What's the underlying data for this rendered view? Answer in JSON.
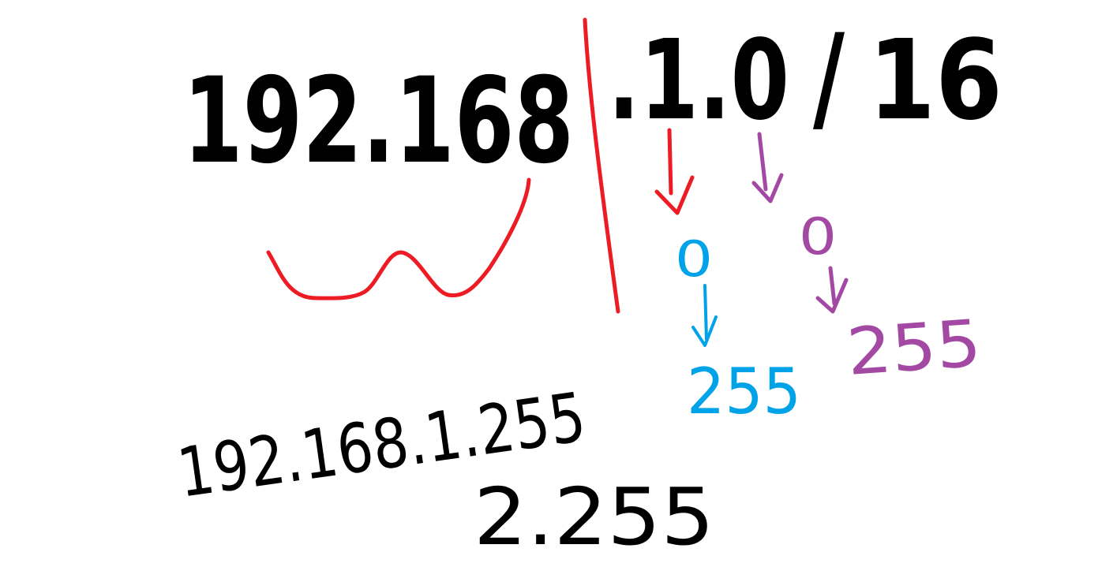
{
  "heading": {
    "network_part": "192.168",
    "host_part": ".1.0",
    "slash": "/",
    "prefix": "16"
  },
  "annotations": {
    "blue_low": "0",
    "blue_high": "255",
    "purple_low": "0",
    "purple_high": "255"
  },
  "bottom": {
    "line1": "192.168.1.255",
    "line2": "2.255"
  },
  "colors": {
    "ink": "#000000",
    "red": "#ed1c24",
    "blue": "#00a2e8",
    "purple": "#a349a4"
  }
}
